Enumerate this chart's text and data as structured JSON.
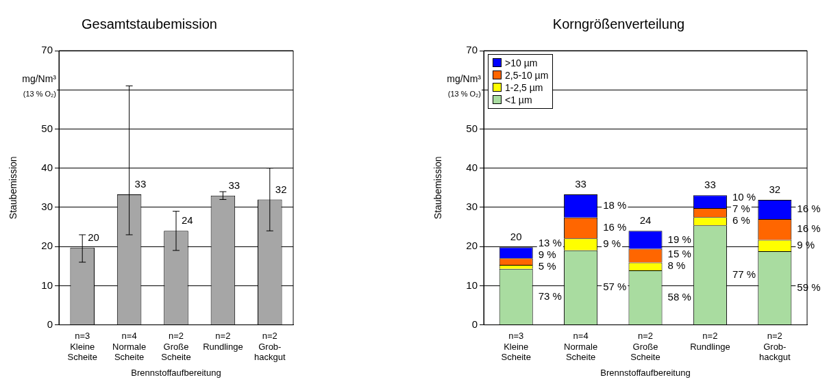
{
  "chart_data": [
    {
      "type": "bar",
      "title": "Gesamtstaubemission",
      "xlabel": "Brennstoffaufbereitung",
      "ylabel": "Staubemission",
      "annotations": [
        "mg/Nm³",
        "(13 % O₂)"
      ],
      "categories": [
        "n=3\nKleine\nScheite",
        "n=4\nNormale\nScheite",
        "n=2\nGroße\nScheite",
        "n=2\nRundlinge",
        "n=2\nGrob-\nhackgut"
      ],
      "values": [
        19.7,
        33.3,
        24,
        33,
        32
      ],
      "color": "#a6a6a6",
      "errors": [
        [
          16,
          23
        ],
        [
          23,
          61
        ],
        [
          19,
          29
        ],
        [
          32,
          34
        ],
        [
          24,
          40
        ]
      ],
      "value_labels": [
        "20",
        "33",
        "24",
        "33",
        "32"
      ],
      "ylim": [
        0,
        70
      ],
      "yticks": [
        0,
        10,
        20,
        30,
        40,
        50,
        {
          "value": 60,
          "label": null
        },
        70
      ],
      "grid": "y"
    },
    {
      "type": "bar",
      "stacked": true,
      "title": "Korngrößenverteilung",
      "xlabel": "Brennstoffaufbereitung",
      "ylabel": "Staubemission",
      "annotations": [
        "mg/Nm³",
        "(13 % O₂)",
        "13 %",
        "9 %",
        "5 %",
        "73 %",
        "18 %",
        "16 %",
        "9 %",
        "57 %",
        "19 %",
        "15 %",
        "8 %",
        "58 %",
        "10 %",
        "7 %",
        "6 %",
        "77 %",
        "16 %",
        "16 %",
        "9 %",
        "59 %"
      ],
      "categories": [
        "n=3\nKleine\nScheite",
        "n=4\nNormale\nScheite",
        "n=2\nGroße\nScheite",
        "n=2\nRundlinge",
        "n=2\nGrob-\nhackgut"
      ],
      "series": [
        {
          "name": "<1 µm",
          "color": "#a9dca0",
          "values": [
            14.3,
            19,
            13.9,
            25.4,
            18.8
          ]
        },
        {
          "name": "1-2,5 µm",
          "color": "#ffff00",
          "values": [
            1,
            3.1,
            2,
            2.1,
            2.9
          ]
        },
        {
          "name": "2,5-10 µm",
          "color": "#ff6600",
          "values": [
            1.7,
            5.3,
            3.5,
            2.3,
            5.3
          ]
        },
        {
          "name": ">10 µm",
          "color": "#0000ff",
          "values": [
            2.8,
            5.9,
            4.6,
            3.3,
            4.9
          ]
        }
      ],
      "totals": [
        "20",
        "33",
        "24",
        "33",
        "32"
      ],
      "legend": "top left",
      "ylim": [
        0,
        70
      ],
      "yticks": [
        0,
        10,
        20,
        30,
        40,
        50,
        {
          "value": 60,
          "label": null
        },
        70
      ],
      "grid": "y"
    }
  ]
}
